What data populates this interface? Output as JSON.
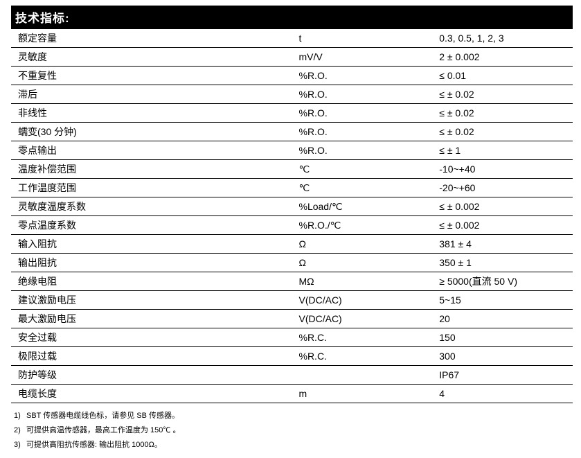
{
  "header": "技术指标:",
  "columns": [
    "param",
    "unit",
    "value"
  ],
  "rows": [
    {
      "param": "额定容量",
      "unit": "t",
      "value": "0.3, 0.5, 1, 2, 3"
    },
    {
      "param": "灵敏度",
      "unit": "mV/V",
      "value": "2 ± 0.002"
    },
    {
      "param": "不重复性",
      "unit": "%R.O.",
      "value": "≤ 0.01"
    },
    {
      "param": "滞后",
      "unit": "%R.O.",
      "value": "≤ ± 0.02"
    },
    {
      "param": "非线性",
      "unit": "%R.O.",
      "value": "≤ ± 0.02"
    },
    {
      "param": "蠕变(30 分钟)",
      "unit": "%R.O.",
      "value": "≤ ± 0.02"
    },
    {
      "param": "零点输出",
      "unit": "%R.O.",
      "value": "≤ ± 1"
    },
    {
      "param": "温度补偿范围",
      "unit": "℃",
      "value": "-10~+40"
    },
    {
      "param": "工作温度范围",
      "unit": "℃",
      "value": "-20~+60"
    },
    {
      "param": "灵敏度温度系数",
      "unit": "%Load/℃",
      "value": "≤ ± 0.002"
    },
    {
      "param": "零点温度系数",
      "unit": "%R.O./℃",
      "value": "≤ ± 0.002"
    },
    {
      "param": "输入阻抗",
      "unit": "Ω",
      "value": "381 ± 4"
    },
    {
      "param": "输出阻抗",
      "unit": "Ω",
      "value": "350 ± 1"
    },
    {
      "param": "绝缘电阻",
      "unit": "MΩ",
      "value": "≥ 5000(直流 50 V)"
    },
    {
      "param": "建议激励电压",
      "unit": "V(DC/AC)",
      "value": "5~15"
    },
    {
      "param": "最大激励电压",
      "unit": "V(DC/AC)",
      "value": "20"
    },
    {
      "param": "安全过载",
      "unit": "%R.C.",
      "value": "150"
    },
    {
      "param": "极限过载",
      "unit": "%R.C.",
      "value": "300"
    },
    {
      "param": "防护等级",
      "unit": "",
      "value": "IP67"
    },
    {
      "param": "电缆长度",
      "unit": "m",
      "value": "4"
    }
  ],
  "notes": [
    {
      "num": "1)",
      "text": "SBT 传感器电缆线色标，请参见 SB 传感器。"
    },
    {
      "num": "2)",
      "text": "可提供高温传感器，最高工作温度为 150℃ 。"
    },
    {
      "num": "3)",
      "text": "可提供高阻抗传感器: 输出阻抗 1000Ω。"
    }
  ],
  "style": {
    "header_bg": "#000000",
    "header_fg": "#ffffff",
    "row_border": "#000000",
    "text_color": "#000000",
    "font_size_table": 14,
    "font_size_notes": 11,
    "col_widths_pct": [
      50,
      25,
      25
    ]
  }
}
